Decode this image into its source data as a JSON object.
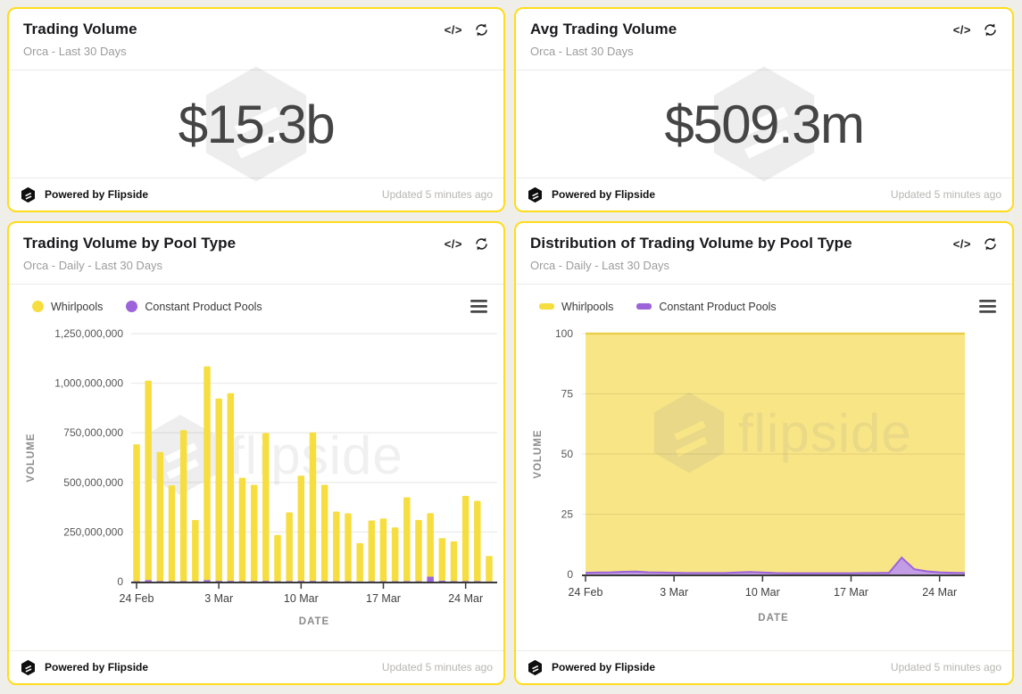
{
  "watermark": {
    "brand": "flipside"
  },
  "icons": {
    "code_glyph": "</>",
    "refresh": "refresh-icon",
    "menu": "menu-icon",
    "flipside_logo": "flipside-logo-icon"
  },
  "footer": {
    "powered": "Powered by Flipside",
    "updated": "Updated 5 minutes ago"
  },
  "theme": {
    "page_bg": "#EFEEE9",
    "card_border": "#FFDC1C",
    "yellow": "#F6DE41",
    "purple": "#9C64D8"
  },
  "cards": [
    {
      "title": "Trading Volume",
      "subtitle": "Orca - Last 30 Days",
      "value": "$15.3b"
    },
    {
      "title": "Avg Trading Volume",
      "subtitle": "Orca - Last 30 Days",
      "value": "$509.3m"
    },
    {
      "title": "Trading Volume by Pool Type",
      "subtitle": "Orca - Daily - Last 30 Days"
    },
    {
      "title": "Distribution of Trading Volume by Pool Type",
      "subtitle": "Orca - Daily - Last 30 Days"
    }
  ],
  "chart_data": [
    {
      "type": "bar",
      "stacked": true,
      "title": "Trading Volume by Pool Type",
      "subtitle": "Orca - Daily - Last 30 Days",
      "xlabel": "DATE",
      "ylabel": "VOLUME",
      "ylim": [
        0,
        1250000000
      ],
      "yticks": [
        "0",
        "250,000,000",
        "500,000,000",
        "750,000,000",
        "1,000,000,000",
        "1,250,000,000"
      ],
      "x": [
        "24 Feb",
        "25 Feb",
        "26 Feb",
        "27 Feb",
        "28 Feb",
        "1 Mar",
        "2 Mar",
        "3 Mar",
        "4 Mar",
        "5 Mar",
        "6 Mar",
        "7 Mar",
        "8 Mar",
        "9 Mar",
        "10 Mar",
        "11 Mar",
        "12 Mar",
        "13 Mar",
        "14 Mar",
        "15 Mar",
        "16 Mar",
        "17 Mar",
        "18 Mar",
        "19 Mar",
        "20 Mar",
        "21 Mar",
        "22 Mar",
        "23 Mar",
        "24 Mar",
        "25 Mar",
        "26 Mar"
      ],
      "xticks": [
        "24 Feb",
        "3 Mar",
        "10 Mar",
        "17 Mar",
        "24 Mar"
      ],
      "xtick_indices": [
        0,
        7,
        14,
        21,
        28
      ],
      "legend_position": "top",
      "grid": true,
      "series": [
        {
          "name": "Whirlpools",
          "color": "#F6DE41",
          "values": [
            690000000,
            1005000000,
            650000000,
            482000000,
            760000000,
            309000000,
            1077000000,
            919000000,
            946000000,
            520000000,
            485000000,
            745000000,
            233000000,
            346000000,
            530000000,
            748000000,
            485000000,
            351000000,
            342000000,
            193000000,
            306000000,
            316000000,
            271000000,
            422000000,
            309000000,
            320000000,
            214000000,
            200000000,
            429000000,
            404000000,
            128000000
          ]
        },
        {
          "name": "Constant Product Pools",
          "color": "#9C64D8",
          "values": [
            2000000,
            8000000,
            3000000,
            3000000,
            3000000,
            2000000,
            8000000,
            4000000,
            4000000,
            3000000,
            3000000,
            4000000,
            2000000,
            3000000,
            4000000,
            4000000,
            3000000,
            2000000,
            2000000,
            1000000,
            2000000,
            2000000,
            2000000,
            3000000,
            2000000,
            25000000,
            5000000,
            3000000,
            3000000,
            3000000,
            1000000
          ]
        }
      ]
    },
    {
      "type": "area",
      "stacked_percent": true,
      "title": "Distribution of Trading Volume by Pool Type",
      "subtitle": "Orca - Daily - Last 30 Days",
      "xlabel": "DATE",
      "ylabel": "VOLUME",
      "ylim": [
        0,
        100
      ],
      "yticks": [
        "0",
        "25",
        "50",
        "75",
        "100"
      ],
      "x": [
        "24 Feb",
        "25 Feb",
        "26 Feb",
        "27 Feb",
        "28 Feb",
        "1 Mar",
        "2 Mar",
        "3 Mar",
        "4 Mar",
        "5 Mar",
        "6 Mar",
        "7 Mar",
        "8 Mar",
        "9 Mar",
        "10 Mar",
        "11 Mar",
        "12 Mar",
        "13 Mar",
        "14 Mar",
        "15 Mar",
        "16 Mar",
        "17 Mar",
        "18 Mar",
        "19 Mar",
        "20 Mar",
        "21 Mar",
        "22 Mar",
        "23 Mar",
        "24 Mar",
        "25 Mar",
        "26 Mar"
      ],
      "xticks": [
        "24 Feb",
        "3 Mar",
        "10 Mar",
        "17 Mar",
        "24 Mar"
      ],
      "xtick_indices": [
        0,
        7,
        14,
        21,
        28
      ],
      "legend_position": "top",
      "grid": true,
      "series": [
        {
          "name": "Whirlpools",
          "color": "#F6DE41",
          "fill": "#F8E586",
          "edge": "#F3D94F",
          "values": [
            99.3,
            99.2,
            99.1,
            98.9,
            98.8,
            99.1,
            99.2,
            99.3,
            99.4,
            99.4,
            99.4,
            99.4,
            99.2,
            99.0,
            99.2,
            99.4,
            99.5,
            99.5,
            99.5,
            99.5,
            99.5,
            99.5,
            99.4,
            99.4,
            99.3,
            93.0,
            97.8,
            98.7,
            99.1,
            99.3,
            99.4
          ]
        },
        {
          "name": "Constant Product Pools",
          "color": "#9C64D8",
          "fill": "#C29DE6",
          "edge": "#9C64D8",
          "values": [
            0.7,
            0.8,
            0.9,
            1.1,
            1.2,
            0.9,
            0.8,
            0.7,
            0.6,
            0.6,
            0.6,
            0.6,
            0.8,
            1.0,
            0.8,
            0.6,
            0.5,
            0.5,
            0.5,
            0.5,
            0.5,
            0.5,
            0.6,
            0.6,
            0.7,
            7.0,
            2.2,
            1.3,
            0.9,
            0.7,
            0.6
          ]
        }
      ]
    }
  ]
}
